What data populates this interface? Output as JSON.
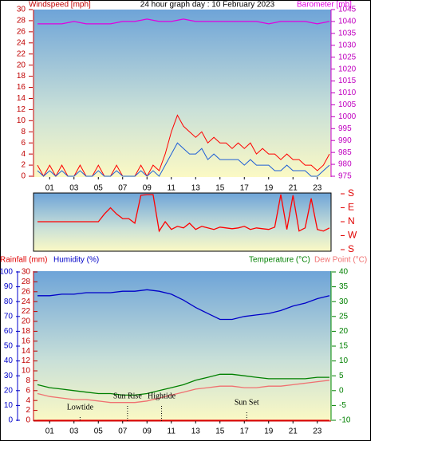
{
  "chart_data": [
    {
      "type": "line",
      "title": "24 hour graph day : 10 February 2023",
      "y_label": "Windspeed [mph]",
      "y2_label": "Barometer [mb]",
      "xlim": [
        0,
        24
      ],
      "xticks": [
        {
          "value": 1,
          "label": "01"
        },
        {
          "value": 3,
          "label": "03"
        },
        {
          "value": 5,
          "label": "05"
        },
        {
          "value": 7,
          "label": "07"
        },
        {
          "value": 9,
          "label": "09"
        },
        {
          "value": 11,
          "label": "11"
        },
        {
          "value": 13,
          "label": "13"
        },
        {
          "value": 15,
          "label": "15"
        },
        {
          "value": 17,
          "label": "17"
        },
        {
          "value": 19,
          "label": "19"
        },
        {
          "value": 21,
          "label": "21"
        },
        {
          "value": 23,
          "label": "23"
        }
      ],
      "ylim": [
        0,
        30
      ],
      "yticks": [
        0,
        2,
        4,
        6,
        8,
        10,
        12,
        14,
        16,
        18,
        20,
        22,
        24,
        26,
        28,
        30
      ],
      "y2lim": [
        975,
        1045
      ],
      "y2ticks": [
        975,
        980,
        985,
        990,
        995,
        1000,
        1005,
        1010,
        1015,
        1020,
        1025,
        1030,
        1035,
        1040,
        1045
      ],
      "series": [
        {
          "color": "#ff0000",
          "x": [
            0,
            0.5,
            1,
            1.5,
            2,
            2.5,
            3,
            3.5,
            4,
            4.5,
            5,
            5.5,
            6,
            6.5,
            7,
            7.5,
            8,
            8.5,
            9,
            9.5,
            10,
            10.5,
            11,
            11.5,
            12,
            12.5,
            13,
            13.5,
            14,
            14.5,
            15,
            15.5,
            16,
            16.5,
            17,
            17.5,
            18,
            18.5,
            19,
            19.5,
            20,
            20.5,
            21,
            21.5,
            22,
            22.5,
            23,
            23.5,
            24
          ],
          "values": [
            2,
            0,
            2,
            0,
            2,
            0,
            0,
            2,
            0,
            0,
            2,
            0,
            0,
            2,
            0,
            0,
            0,
            2,
            0,
            2,
            1,
            4,
            8,
            11,
            9,
            8,
            7,
            8,
            6,
            7,
            6,
            6,
            5,
            6,
            5,
            6,
            4,
            5,
            4,
            4,
            3,
            4,
            3,
            3,
            2,
            2,
            1,
            2,
            4
          ]
        },
        {
          "color": "#1f5fd6",
          "x": [
            0,
            0.5,
            1,
            1.5,
            2,
            2.5,
            3,
            3.5,
            4,
            4.5,
            5,
            5.5,
            6,
            6.5,
            7,
            7.5,
            8,
            8.5,
            9,
            9.5,
            10,
            10.5,
            11,
            11.5,
            12,
            12.5,
            13,
            13.5,
            14,
            14.5,
            15,
            15.5,
            16,
            16.5,
            17,
            17.5,
            18,
            18.5,
            19,
            19.5,
            20,
            20.5,
            21,
            21.5,
            22,
            22.5,
            23,
            23.5,
            24
          ],
          "values": [
            1,
            0,
            1,
            0,
            1,
            0,
            0,
            1,
            0,
            0,
            1,
            0,
            0,
            1,
            0,
            0,
            0,
            1,
            0,
            1,
            0,
            2,
            4,
            6,
            5,
            4,
            4,
            5,
            3,
            4,
            3,
            3,
            3,
            3,
            2,
            3,
            2,
            2,
            2,
            1,
            1,
            2,
            1,
            1,
            1,
            0,
            0,
            1,
            2
          ]
        },
        {
          "color": "#e000e0",
          "axis": "y2",
          "x": [
            0,
            1,
            2,
            3,
            4,
            5,
            6,
            7,
            8,
            9,
            10,
            11,
            12,
            13,
            14,
            15,
            16,
            17,
            18,
            19,
            20,
            21,
            22,
            23,
            24
          ],
          "values": [
            1039,
            1039,
            1039,
            1040,
            1039,
            1039,
            1039,
            1040,
            1040,
            1041,
            1040,
            1040,
            1041,
            1040,
            1040,
            1040,
            1040,
            1040,
            1040,
            1039,
            1040,
            1040,
            1040,
            1039,
            1040
          ]
        }
      ]
    },
    {
      "type": "line",
      "xlim": [
        0,
        24
      ],
      "ylim": [
        0,
        360
      ],
      "yticks": [
        {
          "value": 0,
          "label": "S"
        },
        {
          "value": 90,
          "label": "W"
        },
        {
          "value": 180,
          "label": "N"
        },
        {
          "value": 270,
          "label": "E"
        },
        {
          "value": 360,
          "label": "S"
        }
      ],
      "series": [
        {
          "color": "#ff0000",
          "x": [
            0,
            0.5,
            1,
            1.5,
            2,
            2.5,
            3,
            3.5,
            4,
            4.5,
            5,
            5.5,
            6,
            6.5,
            7,
            7.5,
            8,
            8.5,
            9,
            9.5,
            10,
            10.5,
            11,
            11.5,
            12,
            12.5,
            13,
            13.5,
            14,
            14.5,
            15,
            15.5,
            16,
            16.5,
            17,
            17.5,
            18,
            18.5,
            19,
            19.5,
            20,
            20.5,
            21,
            21.5,
            22,
            22.5,
            23,
            23.5,
            24
          ],
          "values": [
            180,
            180,
            180,
            180,
            180,
            180,
            180,
            180,
            180,
            180,
            180,
            230,
            270,
            230,
            200,
            200,
            170,
            350,
            355,
            355,
            120,
            180,
            130,
            150,
            140,
            170,
            130,
            150,
            140,
            130,
            145,
            140,
            135,
            140,
            150,
            130,
            140,
            135,
            130,
            145,
            355,
            130,
            350,
            120,
            140,
            330,
            130,
            120,
            140
          ]
        }
      ]
    },
    {
      "type": "line",
      "xlim": [
        0,
        24
      ],
      "xticks": [
        {
          "value": 1,
          "label": "01"
        },
        {
          "value": 3,
          "label": "03"
        },
        {
          "value": 5,
          "label": "05"
        },
        {
          "value": 7,
          "label": "07"
        },
        {
          "value": 9,
          "label": "09"
        },
        {
          "value": 11,
          "label": "11"
        },
        {
          "value": 13,
          "label": "13"
        },
        {
          "value": 15,
          "label": "15"
        },
        {
          "value": 17,
          "label": "17"
        },
        {
          "value": 19,
          "label": "19"
        },
        {
          "value": 21,
          "label": "21"
        },
        {
          "value": 23,
          "label": "23"
        }
      ],
      "ylim": [
        0,
        30
      ],
      "yticks": [
        0,
        2,
        4,
        6,
        8,
        10,
        12,
        14,
        16,
        18,
        20,
        22,
        24,
        26,
        28,
        30
      ],
      "y2lim": [
        -10,
        40
      ],
      "y2ticks": [
        -10,
        -5,
        0,
        5,
        10,
        15,
        20,
        25,
        30,
        35,
        40
      ],
      "y3lim": [
        0,
        100
      ],
      "y3ticks": [
        0,
        10,
        20,
        30,
        40,
        50,
        60,
        70,
        80,
        90,
        100
      ],
      "x": [
        0,
        1,
        2,
        3,
        4,
        5,
        6,
        7,
        8,
        9,
        10,
        11,
        12,
        13,
        14,
        15,
        16,
        17,
        18,
        19,
        20,
        21,
        22,
        23,
        24
      ],
      "series": [
        {
          "name": "Rainfall (mm)",
          "color": "#e00000",
          "values": [
            0,
            0,
            0,
            0,
            0,
            0,
            0,
            0,
            0,
            0,
            0,
            0,
            0,
            0,
            0,
            0,
            0,
            0,
            0,
            0,
            0,
            0,
            0,
            0,
            0
          ]
        },
        {
          "name": "Humidity (%)",
          "color": "#0000c8",
          "axis": "y3",
          "values": [
            84,
            84,
            85,
            85,
            86,
            86,
            86,
            87,
            87,
            88,
            87,
            85,
            81,
            76,
            72,
            68,
            68,
            70,
            71,
            72,
            74,
            77,
            79,
            82,
            84
          ]
        },
        {
          "name": "Temperature (°C)",
          "color": "#008000",
          "axis": "y2",
          "values": [
            2,
            1,
            0.5,
            0,
            -0.5,
            -1,
            -1,
            -1.5,
            -1.5,
            -1,
            0,
            1,
            2,
            3.5,
            4.5,
            5.5,
            5.5,
            5,
            4.5,
            4,
            4,
            4,
            4,
            4.5,
            4.5
          ]
        },
        {
          "name": "Dew Point (°C)",
          "color": "#f07070",
          "axis": "y2",
          "values": [
            -1,
            -2,
            -2.5,
            -3,
            -3,
            -3.5,
            -4,
            -4,
            -4,
            -3.5,
            -2.5,
            -1.5,
            -0.5,
            0.5,
            1,
            1.5,
            1.5,
            1,
            1,
            1.5,
            1.5,
            2,
            2.5,
            3,
            3.5
          ]
        }
      ],
      "annotations": [
        {
          "text": "Lowtide",
          "x": 3.5
        },
        {
          "text": "Sun Rise",
          "x": 7.4
        },
        {
          "text": "Hightide",
          "x": 10.2
        },
        {
          "text": "Sun Set",
          "x": 17.2
        }
      ]
    }
  ]
}
